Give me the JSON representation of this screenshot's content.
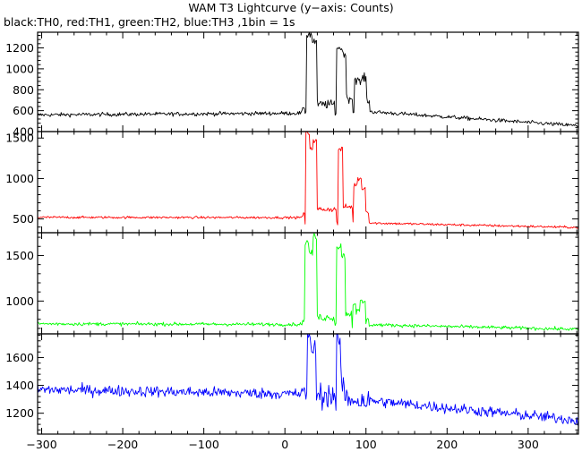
{
  "title": "WAM T3 Lightcurve (y−axis: Counts)",
  "subtitle": "black:TH0, red:TH1, green:TH2, blue:TH3 ,1bin = 1s",
  "chart_data": [
    {
      "type": "line",
      "series": [
        {
          "color": "#000000"
        }
      ],
      "xlim": [
        -305,
        362
      ],
      "ylim": [
        400,
        1350
      ],
      "y_ticks": [
        400,
        600,
        800,
        1000,
        1200
      ],
      "y_tick_labels": [
        "400",
        "600",
        "800",
        "1000",
        "1200"
      ],
      "profile": {
        "pre_level": 560,
        "pre_slope": 0.05,
        "post_start": 590,
        "post_end": 455,
        "noise": 18,
        "peaks": [
          [
            27,
            34,
            1330
          ],
          [
            34,
            40,
            1260
          ],
          [
            64,
            71,
            1200
          ],
          [
            71,
            76,
            1150
          ],
          [
            86,
            91,
            900
          ],
          [
            91,
            95,
            870
          ],
          [
            95,
            101,
            910
          ]
        ],
        "gaps": [
          [
            40,
            62,
            660
          ],
          [
            76,
            84,
            720
          ],
          [
            101,
            105,
            700
          ]
        ]
      }
    },
    {
      "type": "line",
      "series": [
        {
          "color": "#ff0000"
        }
      ],
      "xlim": [
        -305,
        362
      ],
      "ylim": [
        330,
        1580
      ],
      "y_ticks": [
        500,
        1000,
        1500
      ],
      "y_tick_labels": [
        "500",
        "1000",
        "1500"
      ],
      "profile": {
        "pre_level": 520,
        "pre_slope": -0.01,
        "post_start": 450,
        "post_end": 395,
        "noise": 14,
        "peaks": [
          [
            26,
            31,
            1560
          ],
          [
            31,
            35,
            1380
          ],
          [
            35,
            40,
            1460
          ],
          [
            66,
            72,
            1360
          ],
          [
            85,
            90,
            920
          ],
          [
            90,
            95,
            1000
          ],
          [
            95,
            100,
            880
          ]
        ],
        "gaps": [
          [
            40,
            64,
            620
          ],
          [
            72,
            84,
            650
          ],
          [
            100,
            104,
            600
          ]
        ]
      }
    },
    {
      "type": "line",
      "series": [
        {
          "color": "#00ff00"
        }
      ],
      "xlim": [
        -305,
        362
      ],
      "ylim": [
        640,
        1750
      ],
      "y_ticks": [
        1000,
        1500
      ],
      "y_tick_labels": [
        "1000",
        "1500"
      ],
      "profile": {
        "pre_level": 750,
        "pre_slope": -0.02,
        "post_start": 740,
        "post_end": 690,
        "noise": 18,
        "peaks": [
          [
            25,
            30,
            1640
          ],
          [
            30,
            35,
            1530
          ],
          [
            35,
            40,
            1700
          ],
          [
            64,
            70,
            1600
          ],
          [
            70,
            75,
            1500
          ],
          [
            84,
            88,
            980
          ],
          [
            88,
            93,
            880
          ],
          [
            93,
            100,
            990
          ]
        ],
        "gaps": [
          [
            40,
            62,
            820
          ],
          [
            75,
            83,
            860
          ],
          [
            100,
            104,
            780
          ]
        ]
      }
    },
    {
      "type": "line",
      "series": [
        {
          "color": "#0000ff"
        }
      ],
      "xlim": [
        -305,
        362
      ],
      "ylim": [
        1050,
        1770
      ],
      "x_ticks": [
        -300,
        -200,
        -100,
        0,
        100,
        200,
        300
      ],
      "x_tick_labels": [
        "−300",
        "−200",
        "−100",
        "0",
        "100",
        "200",
        "300"
      ],
      "y_ticks": [
        1200,
        1400,
        1600
      ],
      "y_tick_labels": [
        "1200",
        "1400",
        "1600"
      ],
      "profile": {
        "pre_level": 1370,
        "pre_slope": -0.1,
        "post_start": 1290,
        "post_end": 1150,
        "noise": 38,
        "peaks": [
          [
            28,
            33,
            1760
          ],
          [
            33,
            39,
            1650
          ],
          [
            64,
            69,
            1710
          ],
          [
            69,
            74,
            1420
          ]
        ],
        "gaps": [
          [
            39,
            62,
            1330
          ],
          [
            74,
            90,
            1300
          ]
        ]
      }
    }
  ]
}
